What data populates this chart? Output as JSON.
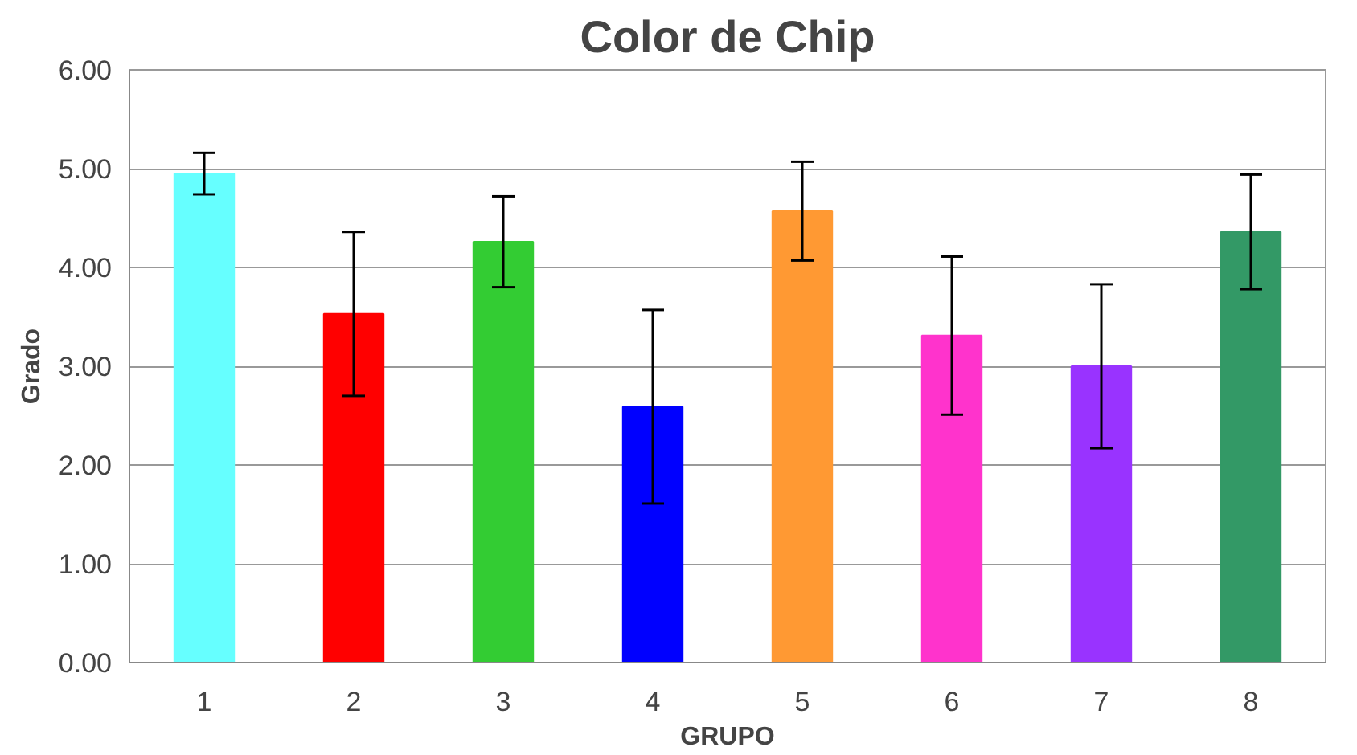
{
  "chart_data": {
    "type": "bar",
    "title": "Color de Chip",
    "xlabel": "GRUPO",
    "ylabel": "Grado",
    "categories": [
      "1",
      "2",
      "3",
      "4",
      "5",
      "6",
      "7",
      "8"
    ],
    "values": [
      4.95,
      3.53,
      4.26,
      2.59,
      4.57,
      3.31,
      3.0,
      4.36
    ],
    "errors": [
      0.21,
      0.83,
      0.46,
      0.98,
      0.5,
      0.8,
      0.83,
      0.58
    ],
    "colors": [
      "#66ffff",
      "#ff0000",
      "#33cc33",
      "#0000ff",
      "#ff9933",
      "#ff33cc",
      "#9933ff",
      "#339966"
    ],
    "ylim": [
      0,
      6
    ],
    "yticks": [
      {
        "value": 0,
        "label": "0.00"
      },
      {
        "value": 1,
        "label": "1.00"
      },
      {
        "value": 2,
        "label": "2.00"
      },
      {
        "value": 3,
        "label": "3.00"
      },
      {
        "value": 4,
        "label": "4.00"
      },
      {
        "value": 5,
        "label": "5.00"
      },
      {
        "value": 6,
        "label": "6.00"
      }
    ],
    "grid": "y"
  }
}
